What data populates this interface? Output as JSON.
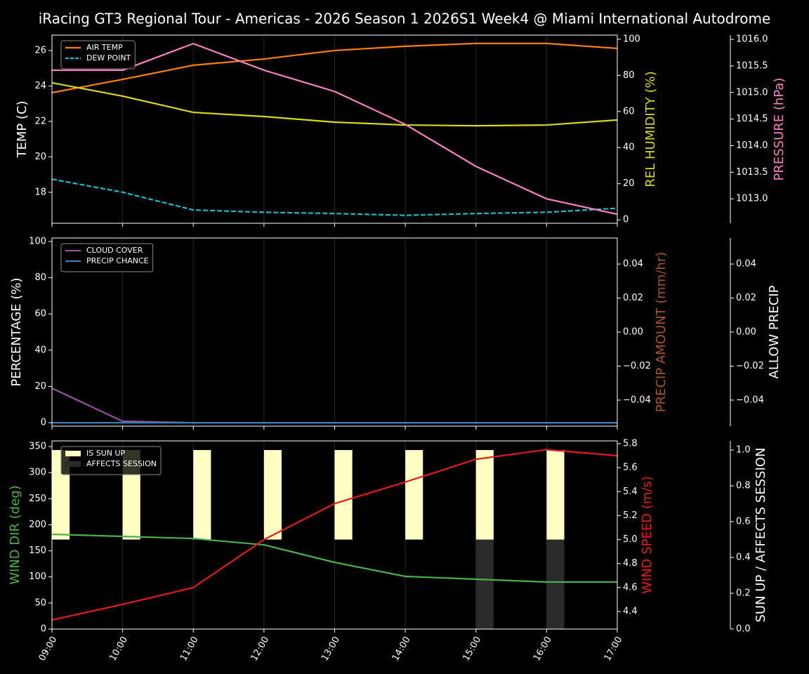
{
  "title": "iRacing GT3 Regional Tour - Americas - 2026 Season 1 2026S1 Week4 @ Miami International Autodrome",
  "chart_data": [
    {
      "type": "line",
      "categories": [
        "09:00",
        "10:00",
        "11:00",
        "12:00",
        "13:00",
        "14:00",
        "15:00",
        "16:00",
        "17:00"
      ],
      "xgrid": true,
      "show_xlabels": false,
      "ylabel": "TEMP (C)",
      "ylabel_color": "#ffffff",
      "ylim": [
        16.25,
        26.87
      ],
      "yticks": [
        18,
        20,
        22,
        24,
        26
      ],
      "y2label": "REL HUMIDITY (%)",
      "y2label_color": "#d9d91a",
      "y2lim": [
        -1.9,
        102.3
      ],
      "y2ticks": [
        0,
        20,
        40,
        60,
        80,
        100
      ],
      "y3label": "PRESSURE (hPa)",
      "y3label_color": "#f781bf",
      "y3lim": [
        1012.54,
        1016.08
      ],
      "y3ticks": [
        {
          "value": 1013,
          "label": "1013.0"
        },
        {
          "value": 1013.5,
          "label": "1013.5"
        },
        {
          "value": 1014,
          "label": "1014.0"
        },
        {
          "value": 1014.5,
          "label": "1014.5"
        },
        {
          "value": 1015,
          "label": "1015.0"
        },
        {
          "value": 1015.5,
          "label": "1015.5"
        },
        {
          "value": 1016,
          "label": "1016.0"
        }
      ],
      "legend": "upper left",
      "series": [
        {
          "name": "AIR TEMP",
          "color": "#ff7f0e",
          "style": "solid",
          "axis": "y",
          "show_in_legend": true,
          "values": [
            23.62,
            24.37,
            25.17,
            25.52,
            26.0,
            26.24,
            26.4,
            26.4,
            26.12
          ]
        },
        {
          "name": "DEW POINT",
          "color": "#17becf",
          "style": "dashed",
          "axis": "y",
          "show_in_legend": true,
          "values": [
            18.74,
            18.0,
            17.0,
            16.87,
            16.8,
            16.7,
            16.8,
            16.87,
            17.1
          ]
        },
        {
          "color": "#d9d91a",
          "style": "solid",
          "axis": "y2",
          "show_in_legend": false,
          "values": [
            75.9,
            68.5,
            59.5,
            57.2,
            54.1,
            52.5,
            52.1,
            52.5,
            55.3
          ]
        },
        {
          "color": "#f781bf",
          "style": "solid",
          "axis": "y3",
          "show_in_legend": false,
          "values": [
            1015.42,
            1015.42,
            1015.92,
            1015.42,
            1015.02,
            1014.4,
            1013.61,
            1013.0,
            1012.71
          ]
        }
      ]
    },
    {
      "type": "line",
      "categories": [
        "09:00",
        "10:00",
        "11:00",
        "12:00",
        "13:00",
        "14:00",
        "15:00",
        "16:00",
        "17:00"
      ],
      "xgrid": true,
      "show_xlabels": false,
      "ylabel": "PERCENTAGE (%)",
      "ylabel_color": "#ffffff",
      "ylim": [
        -1.9,
        101.9
      ],
      "yticks": [
        0,
        20,
        40,
        60,
        80,
        100
      ],
      "y2label": "PRECIP AMOUNT (mm/hr)",
      "y2label_color": "#a65628",
      "y2lim": [
        -0.0553,
        0.0553
      ],
      "y2ticks": [
        {
          "value": -0.04,
          "label": "−0.04"
        },
        {
          "value": -0.02,
          "label": "−0.02"
        },
        {
          "value": 0,
          "label": "0.00"
        },
        {
          "value": 0.02,
          "label": "0.02"
        },
        {
          "value": 0.04,
          "label": "0.04"
        }
      ],
      "y3label": "ALLOW PRECIP",
      "y3label_color": "#ffffff",
      "y3lim": [
        -0.0553,
        0.0553
      ],
      "y3ticks": [
        {
          "value": -0.04,
          "label": "−0.04"
        },
        {
          "value": -0.02,
          "label": "−0.02"
        },
        {
          "value": 0,
          "label": "0.00"
        },
        {
          "value": 0.02,
          "label": "0.02"
        },
        {
          "value": 0.04,
          "label": "0.04"
        }
      ],
      "legend": "upper left",
      "series": [
        {
          "name": "CLOUD COVER",
          "color": "#984ea3",
          "style": "solid",
          "axis": "y",
          "show_in_legend": true,
          "values": [
            19,
            0.8,
            0,
            0,
            0,
            0,
            0,
            0,
            0
          ]
        },
        {
          "name": "PRECIP CHANCE",
          "color": "#377eb8",
          "style": "solid",
          "axis": "y",
          "show_in_legend": true,
          "values": [
            0,
            0,
            0,
            0,
            0,
            0,
            0,
            0,
            0
          ]
        }
      ]
    },
    {
      "type": "line",
      "categories": [
        "09:00",
        "10:00",
        "11:00",
        "12:00",
        "13:00",
        "14:00",
        "15:00",
        "16:00",
        "17:00"
      ],
      "xgrid": true,
      "show_xlabels": true,
      "ylabel": "WIND DIR (deg)",
      "ylabel_color": "#4daf4a",
      "ylim": [
        0,
        360.8
      ],
      "yticks": [
        0,
        50,
        100,
        150,
        200,
        250,
        300,
        350
      ],
      "y2label": "WIND SPEED (m/s)",
      "y2label_color": "#e41a1c",
      "y2lim": [
        4.254,
        5.823
      ],
      "y2ticks": [
        4.4,
        4.6,
        4.8,
        {
          "value": 5,
          "label": "5.0"
        },
        5.2,
        5.4,
        5.6,
        5.8
      ],
      "y3label": "SUN UP / AFFECTS SESSION",
      "y3label_color": "#ffffff",
      "y3lim": [
        0,
        1.051
      ],
      "y3ticks": [
        {
          "value": 0,
          "label": "0.0"
        },
        0.2,
        0.4,
        0.6,
        0.8,
        {
          "value": 1,
          "label": "1.0"
        }
      ],
      "legend": "upper left",
      "series": [
        {
          "name": "IS SUN UP",
          "color": "#ffffc4",
          "style": "bar-upper",
          "axis": "y3",
          "show_in_legend": true,
          "values": [
            1,
            1,
            1,
            1,
            1,
            1,
            1,
            1,
            0
          ]
        },
        {
          "name": "AFFECTS SESSION",
          "color": "#2b2b2b",
          "style": "bar-lower",
          "axis": "y3",
          "show_in_legend": true,
          "values": [
            0,
            0,
            0,
            0,
            0,
            0,
            1,
            1,
            0
          ]
        },
        {
          "color": "#4daf4a",
          "style": "solid",
          "axis": "y",
          "show_in_legend": false,
          "values": [
            181.7,
            177.7,
            173.6,
            161.5,
            127.9,
            101,
            95.6,
            90.2,
            90.2
          ]
        },
        {
          "color": "#e41a1c",
          "style": "solid",
          "axis": "y2",
          "show_in_legend": false,
          "values": [
            4.33,
            4.46,
            4.6,
            5.0,
            5.3,
            5.48,
            5.67,
            5.75,
            5.7
          ]
        }
      ]
    }
  ]
}
